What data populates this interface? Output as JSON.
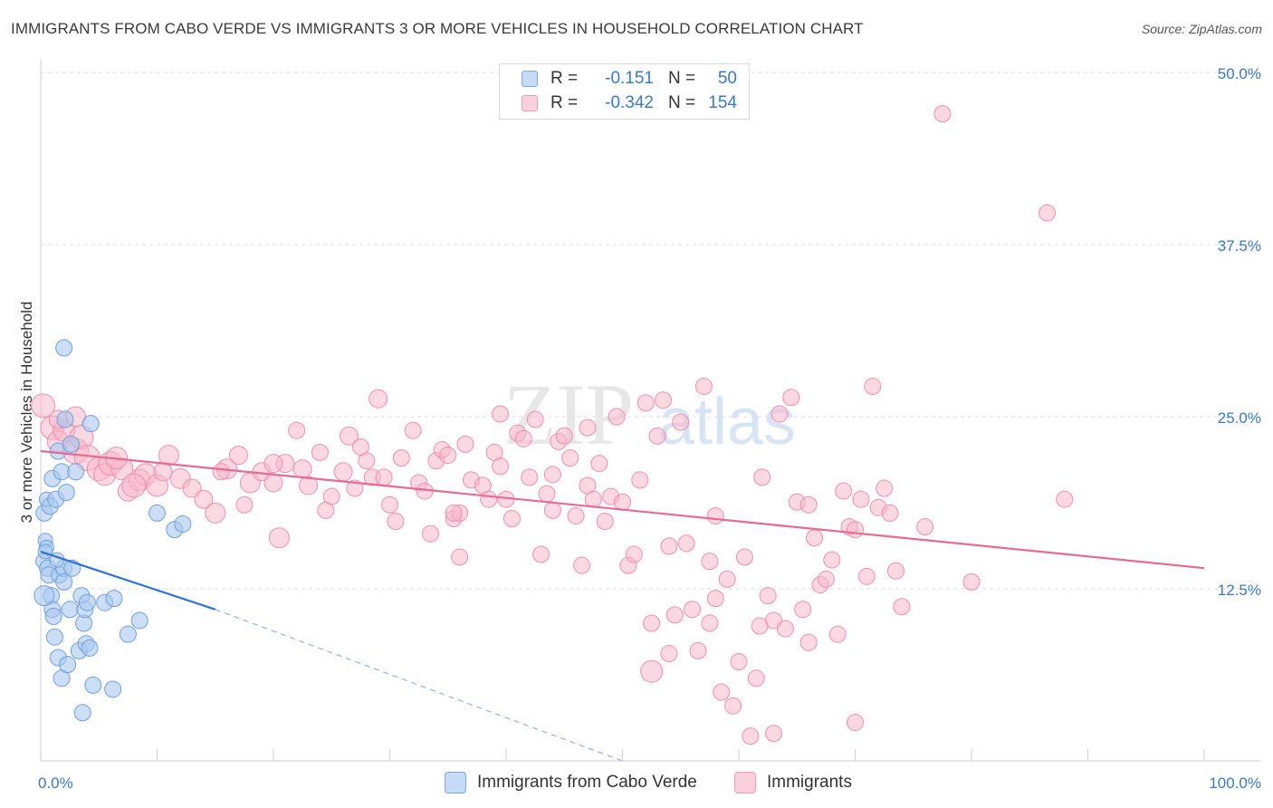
{
  "title": "IMMIGRANTS FROM CABO VERDE VS IMMIGRANTS 3 OR MORE VEHICLES IN HOUSEHOLD CORRELATION CHART",
  "source": "Source: ZipAtlas.com",
  "watermark": {
    "zip": "ZIP",
    "atlas": "atlas"
  },
  "legend": {
    "series1": {
      "r_label": "R =",
      "r_value": "-0.151",
      "n_label": "N =",
      "n_value": "50"
    },
    "series2": {
      "r_label": "R =",
      "r_value": "-0.342",
      "n_label": "N =",
      "n_value": "154"
    }
  },
  "bottom_legend": {
    "series1": "Immigrants from Cabo Verde",
    "series2": "Immigrants"
  },
  "colors": {
    "blue_fill": "#a8c8f0",
    "blue_stroke": "#6fa0dc",
    "blue_line": "#2f74d0",
    "pink_fill": "#f7b8cb",
    "pink_stroke": "#ee8faf",
    "pink_line": "#e36b96",
    "axis_text": "#3a78c8",
    "grid": "#dcdcdc"
  },
  "chart_data": {
    "type": "scatter",
    "title": "IMMIGRANTS FROM CABO VERDE VS IMMIGRANTS 3 OR MORE VEHICLES IN HOUSEHOLD CORRELATION CHART",
    "xlabel": "",
    "ylabel": "3 or more Vehicles in Household",
    "xlim": [
      0,
      100
    ],
    "ylim": [
      0,
      50
    ],
    "x_tick_labels": [
      "0.0%",
      "100.0%"
    ],
    "y_ticks": [
      12.5,
      25.0,
      37.5,
      50.0
    ],
    "y_tick_labels": [
      "12.5%",
      "25.0%",
      "37.5%",
      "50.0%"
    ],
    "series": [
      {
        "name": "Immigrants from Cabo Verde",
        "color": "blue",
        "trend": {
          "x": [
            0,
            15
          ],
          "y": [
            15.2,
            11.0
          ],
          "dashed_to": [
            50,
            0
          ]
        },
        "points": [
          [
            0.2,
            14.5,
            8
          ],
          [
            0.3,
            18.0,
            9
          ],
          [
            0.4,
            16.0,
            8
          ],
          [
            0.5,
            15.5,
            8
          ],
          [
            0.6,
            14.0,
            9
          ],
          [
            0.5,
            19.0,
            8
          ],
          [
            0.7,
            13.5,
            9
          ],
          [
            0.8,
            18.5,
            9
          ],
          [
            0.9,
            12.0,
            9
          ],
          [
            1.0,
            20.5,
            9
          ],
          [
            1.0,
            11.0,
            9
          ],
          [
            1.1,
            10.5,
            9
          ],
          [
            1.2,
            9.0,
            9
          ],
          [
            1.3,
            19.0,
            9
          ],
          [
            1.5,
            22.5,
            9
          ],
          [
            1.5,
            7.5,
            9
          ],
          [
            1.6,
            13.5,
            9
          ],
          [
            1.8,
            6.0,
            9
          ],
          [
            1.8,
            21.0,
            9
          ],
          [
            2.0,
            14.0,
            9
          ],
          [
            2.0,
            13.0,
            9
          ],
          [
            2.1,
            24.8,
            9
          ],
          [
            2.2,
            19.5,
            9
          ],
          [
            2.3,
            7.0,
            9
          ],
          [
            2.5,
            11.0,
            9
          ],
          [
            2.0,
            30.0,
            9
          ],
          [
            2.6,
            23.0,
            9
          ],
          [
            2.7,
            14.0,
            9
          ],
          [
            3.0,
            21.0,
            9
          ],
          [
            3.3,
            8.0,
            9
          ],
          [
            3.5,
            12.0,
            9
          ],
          [
            3.6,
            3.5,
            9
          ],
          [
            3.7,
            10.0,
            9
          ],
          [
            3.8,
            11.0,
            9
          ],
          [
            3.9,
            8.5,
            9
          ],
          [
            4.0,
            11.5,
            9
          ],
          [
            4.2,
            8.2,
            9
          ],
          [
            4.3,
            24.5,
            9
          ],
          [
            4.5,
            5.5,
            9
          ],
          [
            5.5,
            11.5,
            9
          ],
          [
            6.2,
            5.2,
            9
          ],
          [
            6.3,
            11.8,
            9
          ],
          [
            7.5,
            9.2,
            9
          ],
          [
            8.5,
            10.2,
            9
          ],
          [
            10.0,
            18.0,
            9
          ],
          [
            11.5,
            16.8,
            9
          ],
          [
            12.2,
            17.2,
            9
          ],
          [
            0.3,
            12.0,
            11
          ],
          [
            0.4,
            15.2,
            8
          ],
          [
            1.4,
            14.6,
            8
          ]
        ]
      },
      {
        "name": "Immigrants",
        "color": "pink",
        "trend": {
          "x": [
            0,
            100
          ],
          "y": [
            22.5,
            14.0
          ]
        },
        "points": [
          [
            0.2,
            25.8,
            13
          ],
          [
            1.0,
            24.2,
            13
          ],
          [
            1.5,
            23.2,
            12
          ],
          [
            2.0,
            24.0,
            12
          ],
          [
            3.0,
            22.5,
            14
          ],
          [
            3.5,
            23.5,
            13
          ],
          [
            4.0,
            22.0,
            14
          ],
          [
            5.0,
            21.2,
            13
          ],
          [
            5.5,
            20.8,
            12
          ],
          [
            6.0,
            21.6,
            13
          ],
          [
            7.0,
            21.2,
            12
          ],
          [
            7.5,
            19.6,
            11
          ],
          [
            8.5,
            20.4,
            12
          ],
          [
            9.0,
            20.8,
            12
          ],
          [
            10.0,
            20.0,
            12
          ],
          [
            11.0,
            22.2,
            11
          ],
          [
            12.0,
            20.5,
            11
          ],
          [
            13.0,
            19.8,
            10
          ],
          [
            14.0,
            19.0,
            10
          ],
          [
            15.0,
            18.0,
            11
          ],
          [
            16.0,
            21.2,
            11
          ],
          [
            17.0,
            22.2,
            10
          ],
          [
            18.0,
            20.2,
            11
          ],
          [
            19.0,
            21.0,
            10
          ],
          [
            20.0,
            20.2,
            10
          ],
          [
            20.5,
            16.2,
            11
          ],
          [
            21.0,
            21.6,
            10
          ],
          [
            22.0,
            24.0,
            9
          ],
          [
            22.5,
            21.2,
            10
          ],
          [
            23.0,
            20.0,
            10
          ],
          [
            24.0,
            22.4,
            9
          ],
          [
            25.0,
            19.2,
            9
          ],
          [
            26.0,
            21.0,
            10
          ],
          [
            26.5,
            23.6,
            10
          ],
          [
            27.0,
            19.8,
            9
          ],
          [
            28.0,
            21.8,
            9
          ],
          [
            28.5,
            20.6,
            9
          ],
          [
            29.0,
            26.3,
            10
          ],
          [
            30.0,
            18.6,
            9
          ],
          [
            30.5,
            17.4,
            9
          ],
          [
            31.0,
            22.0,
            9
          ],
          [
            32.0,
            24.0,
            9
          ],
          [
            32.5,
            20.2,
            9
          ],
          [
            33.0,
            19.6,
            9
          ],
          [
            34.0,
            21.8,
            9
          ],
          [
            34.5,
            22.6,
            9
          ],
          [
            35.0,
            22.2,
            9
          ],
          [
            35.5,
            17.6,
            9
          ],
          [
            36.0,
            18.0,
            9
          ],
          [
            36.5,
            23.0,
            9
          ],
          [
            37.0,
            20.4,
            9
          ],
          [
            38.0,
            20.0,
            9
          ],
          [
            38.5,
            19.0,
            9
          ],
          [
            39.0,
            22.4,
            9
          ],
          [
            39.5,
            21.4,
            9
          ],
          [
            40.0,
            19.0,
            9
          ],
          [
            40.5,
            17.6,
            9
          ],
          [
            41.0,
            23.8,
            9
          ],
          [
            41.5,
            23.4,
            9
          ],
          [
            42.0,
            20.6,
            9
          ],
          [
            42.5,
            24.8,
            9
          ],
          [
            43.0,
            15.0,
            9
          ],
          [
            43.5,
            19.4,
            9
          ],
          [
            44.0,
            20.8,
            9
          ],
          [
            44.5,
            23.2,
            9
          ],
          [
            45.0,
            23.6,
            9
          ],
          [
            45.5,
            22.0,
            9
          ],
          [
            46.0,
            17.8,
            9
          ],
          [
            46.5,
            14.2,
            9
          ],
          [
            47.0,
            20.0,
            9
          ],
          [
            47.5,
            19.0,
            9
          ],
          [
            48.0,
            21.6,
            9
          ],
          [
            48.5,
            17.4,
            9
          ],
          [
            49.0,
            19.2,
            9
          ],
          [
            49.5,
            25.0,
            9
          ],
          [
            50.0,
            18.8,
            9
          ],
          [
            50.5,
            14.2,
            9
          ],
          [
            51.0,
            15.0,
            9
          ],
          [
            51.5,
            20.4,
            9
          ],
          [
            52.0,
            26.0,
            9
          ],
          [
            52.5,
            10.0,
            9
          ],
          [
            53.0,
            23.6,
            9
          ],
          [
            53.5,
            26.2,
            9
          ],
          [
            54.0,
            15.6,
            9
          ],
          [
            54.5,
            10.6,
            9
          ],
          [
            55.0,
            24.6,
            9
          ],
          [
            55.5,
            15.8,
            9
          ],
          [
            56.0,
            11.0,
            9
          ],
          [
            56.5,
            8.0,
            9
          ],
          [
            57.0,
            27.2,
            9
          ],
          [
            57.5,
            10.0,
            9
          ],
          [
            58.0,
            11.8,
            9
          ],
          [
            58.5,
            5.0,
            9
          ],
          [
            59.0,
            13.2,
            9
          ],
          [
            59.5,
            4.0,
            9
          ],
          [
            60.0,
            7.2,
            9
          ],
          [
            60.5,
            14.8,
            9
          ],
          [
            61.0,
            1.8,
            9
          ],
          [
            61.5,
            6.0,
            9
          ],
          [
            62.0,
            20.6,
            9
          ],
          [
            62.5,
            12.0,
            9
          ],
          [
            63.0,
            10.2,
            9
          ],
          [
            63.5,
            25.2,
            9
          ],
          [
            64.0,
            9.6,
            9
          ],
          [
            64.5,
            26.4,
            9
          ],
          [
            65.0,
            18.8,
            9
          ],
          [
            65.5,
            11.0,
            9
          ],
          [
            66.0,
            18.6,
            9
          ],
          [
            66.5,
            16.2,
            9
          ],
          [
            67.0,
            12.8,
            9
          ],
          [
            67.5,
            13.2,
            9
          ],
          [
            68.0,
            14.6,
            9
          ],
          [
            68.5,
            9.2,
            9
          ],
          [
            69.0,
            19.6,
            9
          ],
          [
            69.5,
            17.0,
            9
          ],
          [
            70.0,
            2.8,
            9
          ],
          [
            70.5,
            19.0,
            9
          ],
          [
            71.0,
            13.4,
            9
          ],
          [
            71.5,
            27.2,
            9
          ],
          [
            72.0,
            18.4,
            9
          ],
          [
            72.5,
            19.8,
            9
          ],
          [
            73.0,
            18.0,
            9
          ],
          [
            73.5,
            13.8,
            9
          ],
          [
            74.0,
            11.2,
            9
          ],
          [
            76.0,
            17.0,
            9
          ],
          [
            77.5,
            47.0,
            9
          ],
          [
            80.0,
            13.0,
            9
          ],
          [
            86.5,
            39.8,
            9
          ],
          [
            88.0,
            19.0,
            9
          ],
          [
            63.0,
            2.0,
            9
          ],
          [
            52.5,
            6.5,
            12
          ],
          [
            35.5,
            18.0,
            9
          ],
          [
            27.5,
            22.8,
            9
          ],
          [
            20.0,
            21.6,
            10
          ],
          [
            10.5,
            21.0,
            10
          ],
          [
            6.5,
            22.0,
            12
          ],
          [
            3.0,
            25.0,
            11
          ],
          [
            1.5,
            24.8,
            10
          ],
          [
            8.0,
            20.0,
            13
          ],
          [
            15.5,
            21.0,
            9
          ],
          [
            17.5,
            18.6,
            9
          ],
          [
            29.5,
            20.6,
            9
          ],
          [
            33.5,
            16.5,
            9
          ],
          [
            44.0,
            18.2,
            9
          ],
          [
            57.5,
            14.5,
            9
          ],
          [
            61.8,
            9.8,
            9
          ],
          [
            66.0,
            8.6,
            9
          ],
          [
            70.0,
            16.8,
            9
          ],
          [
            54.0,
            7.8,
            9
          ],
          [
            58.0,
            17.8,
            9
          ],
          [
            47.0,
            24.2,
            9
          ],
          [
            39.5,
            25.2,
            9
          ],
          [
            24.5,
            18.2,
            9
          ],
          [
            36.0,
            14.8,
            9
          ]
        ]
      }
    ]
  }
}
